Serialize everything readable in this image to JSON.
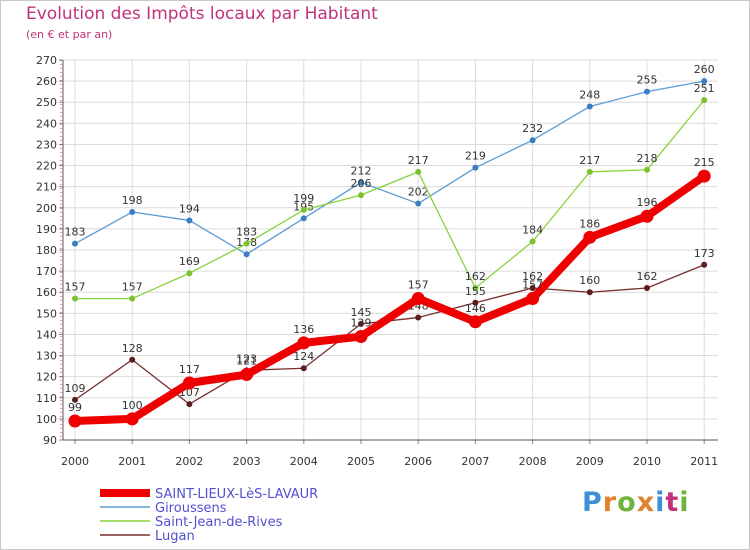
{
  "header": {
    "title": "Evolution des Impôts locaux par Habitant",
    "subtitle": "(en € et par an)"
  },
  "logo": {
    "text": "Proxiti",
    "colors": [
      "#3f8fd6",
      "#e0822a",
      "#6fb43a",
      "#e0822a",
      "#3f8fd6",
      "#c0337a",
      "#6fb43a"
    ]
  },
  "chart_data": {
    "type": "line",
    "x": [
      2000,
      2001,
      2002,
      2003,
      2004,
      2005,
      2006,
      2007,
      2008,
      2009,
      2010,
      2011
    ],
    "ylim": [
      90,
      270
    ],
    "yticks": [
      90,
      100,
      110,
      120,
      130,
      140,
      150,
      160,
      170,
      180,
      190,
      200,
      210,
      220,
      230,
      240,
      250,
      260,
      270
    ],
    "grid": true,
    "legend_position": "bottom-left",
    "series": [
      {
        "name": "SAINT-LIEUX-LèS-LAVAUR",
        "color": "#ee0000",
        "emphasis": true,
        "values": [
          99,
          100,
          117,
          121,
          136,
          139,
          157,
          146,
          157,
          186,
          196,
          215
        ],
        "labels": [
          "99",
          "100",
          "117",
          "121",
          "136",
          "139",
          "157",
          "146",
          "157",
          "186",
          "196",
          "215"
        ]
      },
      {
        "name": "Giroussens",
        "color": "#5b9bd5",
        "emphasis": false,
        "values": [
          183,
          198,
          194,
          178,
          195,
          212,
          202,
          219,
          232,
          248,
          255,
          260
        ],
        "labels": [
          "183",
          "198",
          "194",
          "178",
          "195",
          "212",
          "202",
          "219",
          "232",
          "248",
          "255",
          "260"
        ]
      },
      {
        "name": "Saint-Jean-de-Rives",
        "color": "#8ad23c",
        "emphasis": false,
        "values": [
          157,
          157,
          169,
          183,
          199,
          206,
          217,
          162,
          184,
          217,
          218,
          251
        ],
        "labels": [
          "157",
          "157",
          "169",
          "183",
          "199",
          "206",
          "217",
          "162",
          "184",
          "217",
          "218",
          "251"
        ]
      },
      {
        "name": "Lugan",
        "color": "#7a2e2e",
        "emphasis": false,
        "values": [
          109,
          128,
          107,
          123,
          124,
          145,
          148,
          155,
          162,
          160,
          162,
          173
        ],
        "labels": [
          "109",
          "128",
          "107",
          "123",
          "124",
          "145",
          "148",
          "155",
          "162",
          "160",
          "162",
          "173"
        ]
      }
    ]
  }
}
